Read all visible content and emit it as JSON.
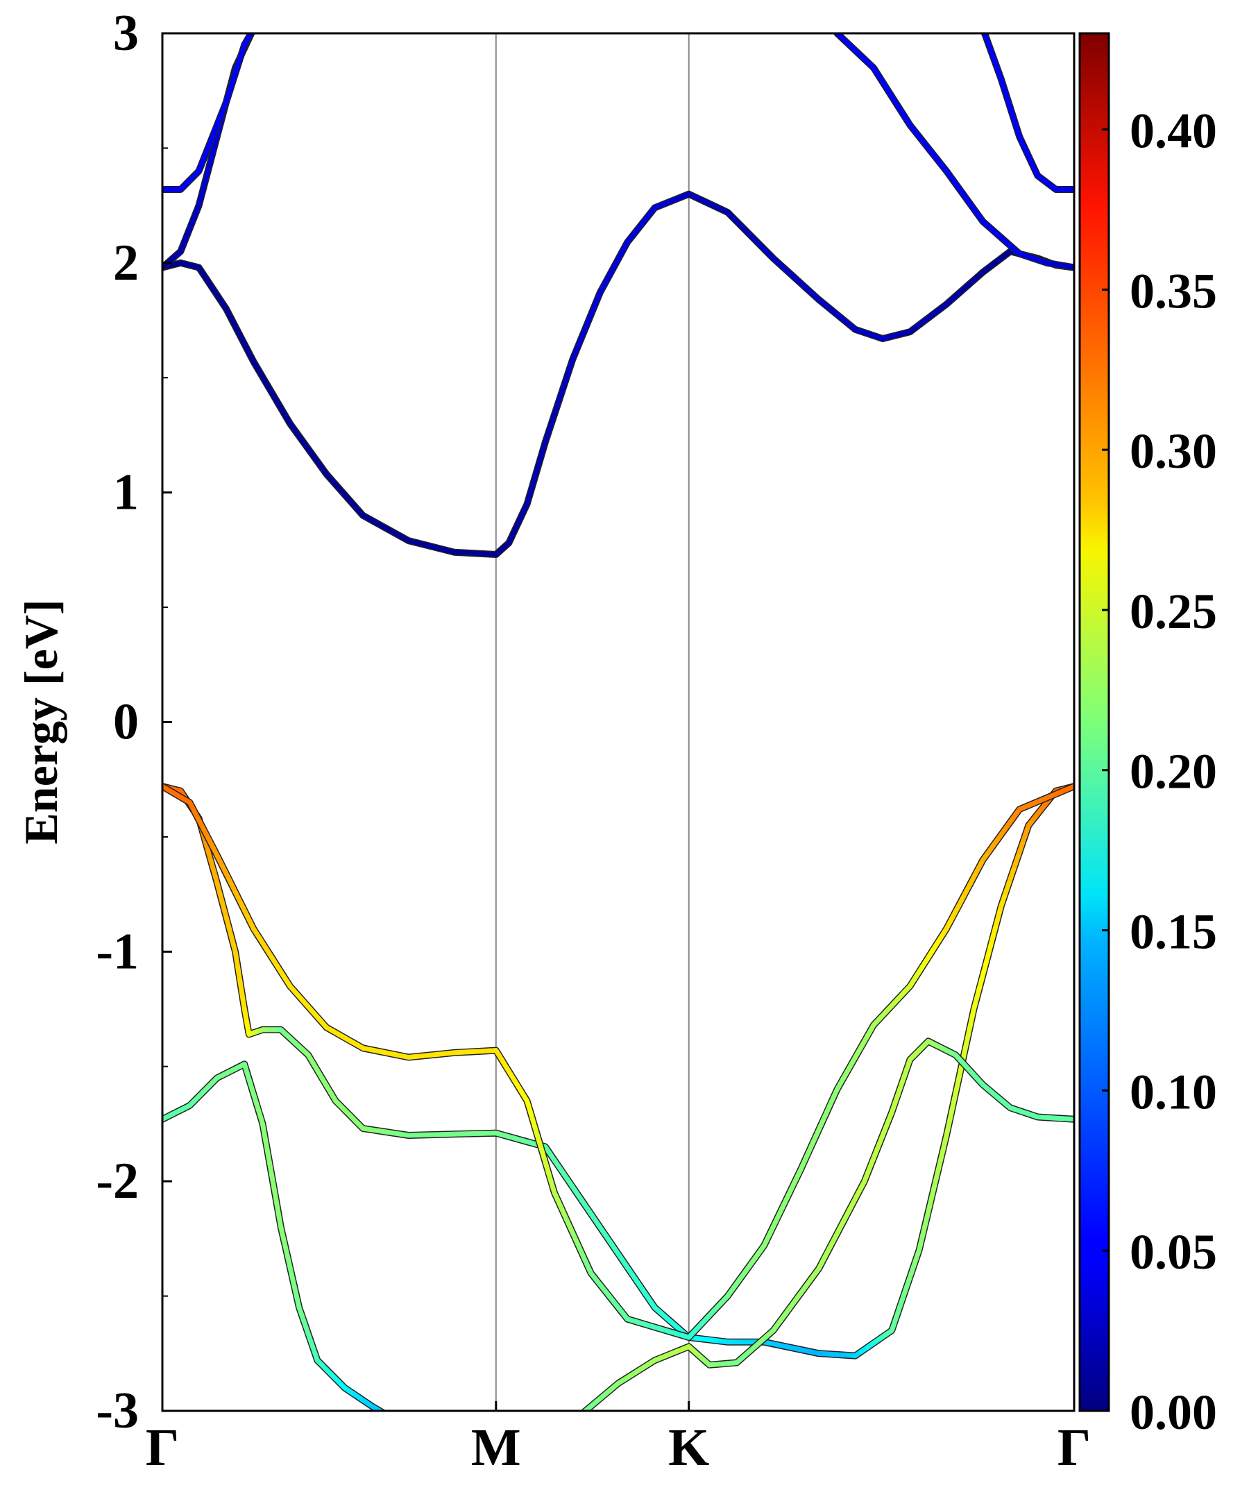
{
  "chart_data": {
    "type": "line",
    "title": "",
    "xlabel": "",
    "ylabel": "Energy [eV]",
    "ylim": [
      -3,
      3
    ],
    "y_ticks": [
      "3",
      "2",
      "1",
      "0",
      "-1",
      "-2",
      "-3"
    ],
    "x_ticks": [
      {
        "label": "Γ",
        "k": 0.0
      },
      {
        "label": "M",
        "k": 0.3659
      },
      {
        "label": "K",
        "k": 0.5774
      },
      {
        "label": "Γ",
        "k": 1.0
      }
    ],
    "xlim": [
      0,
      1
    ],
    "colormap": "jet",
    "colorbar": {
      "range": [
        0.0,
        0.43
      ],
      "tick_labels": [
        "0.40",
        "0.35",
        "0.30",
        "0.25",
        "0.20",
        "0.15",
        "0.10",
        "0.05",
        "0.00"
      ],
      "tick_values": [
        0.4,
        0.35,
        0.3,
        0.25,
        0.2,
        0.15,
        0.1,
        0.05,
        0.0
      ]
    },
    "series": [
      {
        "points": [
          [
            0.0,
            -0.28,
            0.33
          ],
          [
            0.02,
            -0.3,
            0.33
          ],
          [
            0.04,
            -0.42,
            0.32
          ],
          [
            0.06,
            -0.7,
            0.3
          ],
          [
            0.08,
            -1.0,
            0.29
          ],
          [
            0.09,
            -1.25,
            0.28
          ],
          [
            0.095,
            -1.36,
            0.27
          ],
          [
            0.11,
            -1.34,
            0.23
          ],
          [
            0.13,
            -1.34,
            0.21
          ],
          [
            0.16,
            -1.45,
            0.22
          ],
          [
            0.19,
            -1.65,
            0.22
          ],
          [
            0.22,
            -1.77,
            0.22
          ],
          [
            0.27,
            -1.8,
            0.21
          ],
          [
            0.3659,
            -1.79,
            0.21
          ],
          [
            0.42,
            -1.85,
            0.2
          ],
          [
            0.48,
            -2.2,
            0.19
          ],
          [
            0.54,
            -2.55,
            0.18
          ],
          [
            0.5774,
            -2.68,
            0.17
          ],
          [
            0.62,
            -2.7,
            0.15
          ],
          [
            0.66,
            -2.7,
            0.14
          ],
          [
            0.72,
            -2.75,
            0.13
          ],
          [
            0.76,
            -2.76,
            0.14
          ],
          [
            0.8,
            -2.65,
            0.2
          ],
          [
            0.83,
            -2.3,
            0.22
          ],
          [
            0.86,
            -1.8,
            0.24
          ],
          [
            0.89,
            -1.25,
            0.26
          ],
          [
            0.92,
            -0.8,
            0.28
          ],
          [
            0.95,
            -0.45,
            0.31
          ],
          [
            0.98,
            -0.3,
            0.33
          ],
          [
            1.0,
            -0.28,
            0.33
          ]
        ]
      },
      {
        "points": [
          [
            0.0,
            -0.28,
            0.33
          ],
          [
            0.03,
            -0.35,
            0.33
          ],
          [
            0.06,
            -0.58,
            0.31
          ],
          [
            0.1,
            -0.9,
            0.29
          ],
          [
            0.14,
            -1.15,
            0.28
          ],
          [
            0.18,
            -1.33,
            0.28
          ],
          [
            0.22,
            -1.42,
            0.28
          ],
          [
            0.27,
            -1.46,
            0.28
          ],
          [
            0.32,
            -1.44,
            0.28
          ],
          [
            0.3659,
            -1.43,
            0.28
          ],
          [
            0.4,
            -1.65,
            0.27
          ],
          [
            0.43,
            -2.05,
            0.24
          ],
          [
            0.47,
            -2.4,
            0.21
          ],
          [
            0.51,
            -2.6,
            0.2
          ],
          [
            0.5774,
            -2.68,
            0.18
          ],
          [
            0.62,
            -2.5,
            0.21
          ],
          [
            0.66,
            -2.28,
            0.22
          ],
          [
            0.7,
            -1.95,
            0.22
          ],
          [
            0.74,
            -1.6,
            0.22
          ],
          [
            0.78,
            -1.32,
            0.23
          ],
          [
            0.82,
            -1.15,
            0.25
          ],
          [
            0.86,
            -0.9,
            0.28
          ],
          [
            0.9,
            -0.6,
            0.3
          ],
          [
            0.94,
            -0.38,
            0.32
          ],
          [
            1.0,
            -0.28,
            0.33
          ]
        ]
      },
      {
        "points": [
          [
            0.0,
            -1.73,
            0.2
          ],
          [
            0.03,
            -1.67,
            0.2
          ],
          [
            0.06,
            -1.55,
            0.21
          ],
          [
            0.09,
            -1.49,
            0.21
          ],
          [
            0.11,
            -1.75,
            0.22
          ],
          [
            0.13,
            -2.2,
            0.22
          ],
          [
            0.15,
            -2.55,
            0.21
          ],
          [
            0.17,
            -2.78,
            0.19
          ],
          [
            0.2,
            -2.9,
            0.16
          ],
          [
            0.23,
            -2.98,
            0.14
          ],
          [
            0.26,
            -3.05,
            0.13
          ]
        ]
      },
      {
        "points": [
          [
            0.44,
            -3.08,
            0.2
          ],
          [
            0.47,
            -2.98,
            0.21
          ],
          [
            0.5,
            -2.88,
            0.22
          ],
          [
            0.54,
            -2.78,
            0.23
          ],
          [
            0.5774,
            -2.72,
            0.24
          ],
          [
            0.6,
            -2.8,
            0.22
          ],
          [
            0.63,
            -2.79,
            0.21
          ],
          [
            0.67,
            -2.65,
            0.22
          ],
          [
            0.72,
            -2.38,
            0.23
          ],
          [
            0.77,
            -2.0,
            0.24
          ],
          [
            0.8,
            -1.7,
            0.24
          ],
          [
            0.82,
            -1.47,
            0.24
          ],
          [
            0.84,
            -1.39,
            0.23
          ],
          [
            0.87,
            -1.45,
            0.21
          ],
          [
            0.9,
            -1.58,
            0.2
          ],
          [
            0.93,
            -1.68,
            0.2
          ],
          [
            0.96,
            -1.72,
            0.2
          ],
          [
            1.0,
            -1.73,
            0.2
          ]
        ]
      },
      {
        "points": [
          [
            0.0,
            1.98,
            0.01
          ],
          [
            0.02,
            2.0,
            0.01
          ],
          [
            0.04,
            1.98,
            0.01
          ],
          [
            0.07,
            1.8,
            0.01
          ],
          [
            0.1,
            1.57,
            0.01
          ],
          [
            0.14,
            1.3,
            0.01
          ],
          [
            0.18,
            1.08,
            0.01
          ],
          [
            0.22,
            0.9,
            0.01
          ],
          [
            0.27,
            0.79,
            0.01
          ],
          [
            0.32,
            0.74,
            0.01
          ],
          [
            0.3659,
            0.73,
            0.01
          ],
          [
            0.38,
            0.78,
            0.01
          ],
          [
            0.4,
            0.95,
            0.02
          ],
          [
            0.42,
            1.22,
            0.02
          ],
          [
            0.45,
            1.58,
            0.03
          ],
          [
            0.48,
            1.87,
            0.04
          ],
          [
            0.51,
            2.09,
            0.04
          ],
          [
            0.54,
            2.24,
            0.04
          ],
          [
            0.5774,
            2.3,
            0.03
          ],
          [
            0.62,
            2.22,
            0.02
          ],
          [
            0.67,
            2.02,
            0.03
          ],
          [
            0.72,
            1.84,
            0.03
          ],
          [
            0.76,
            1.71,
            0.03
          ],
          [
            0.79,
            1.67,
            0.03
          ],
          [
            0.82,
            1.7,
            0.02
          ],
          [
            0.86,
            1.82,
            0.02
          ],
          [
            0.9,
            1.96,
            0.01
          ],
          [
            0.93,
            2.05,
            0.01
          ],
          [
            0.96,
            2.02,
            0.01
          ],
          [
            0.98,
            1.99,
            0.01
          ],
          [
            1.0,
            1.98,
            0.01
          ]
        ]
      },
      {
        "points": [
          [
            0.0,
            1.98,
            0.01
          ],
          [
            0.02,
            2.05,
            0.02
          ],
          [
            0.04,
            2.25,
            0.03
          ],
          [
            0.06,
            2.55,
            0.04
          ],
          [
            0.08,
            2.85,
            0.05
          ],
          [
            0.1,
            3.02,
            0.05
          ]
        ]
      },
      {
        "points": [
          [
            0.0,
            2.32,
            0.05
          ],
          [
            0.02,
            2.32,
            0.05
          ],
          [
            0.04,
            2.4,
            0.05
          ],
          [
            0.07,
            2.7,
            0.05
          ],
          [
            0.09,
            2.95,
            0.05
          ],
          [
            0.1,
            3.02,
            0.05
          ]
        ]
      },
      {
        "points": [
          [
            0.74,
            3.0,
            0.05
          ],
          [
            0.78,
            2.85,
            0.05
          ],
          [
            0.82,
            2.6,
            0.05
          ],
          [
            0.86,
            2.4,
            0.05
          ],
          [
            0.9,
            2.18,
            0.05
          ],
          [
            0.94,
            2.04,
            0.05
          ],
          [
            0.97,
            2.0,
            0.04
          ],
          [
            1.0,
            1.98,
            0.03
          ]
        ]
      },
      {
        "points": [
          [
            0.9,
            3.02,
            0.05
          ],
          [
            0.92,
            2.8,
            0.05
          ],
          [
            0.94,
            2.55,
            0.05
          ],
          [
            0.96,
            2.38,
            0.05
          ],
          [
            0.98,
            2.32,
            0.05
          ],
          [
            1.0,
            2.32,
            0.05
          ]
        ]
      }
    ]
  }
}
